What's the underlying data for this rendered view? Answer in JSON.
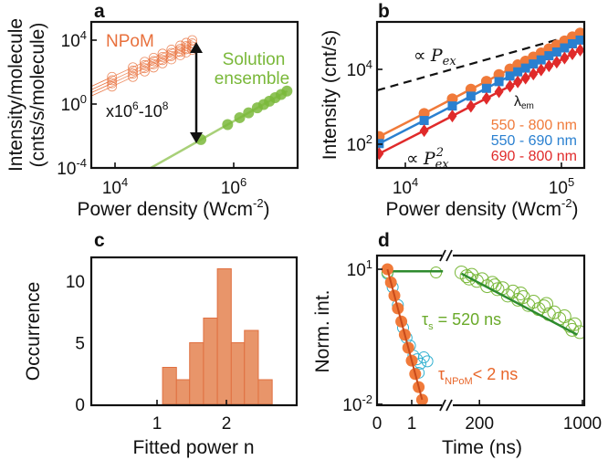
{
  "colors": {
    "npom": "#e8703c",
    "solution": "#7ab83a",
    "fit_green": "#2e8b2e",
    "orange": "#f07a3a",
    "blue": "#2a80d0",
    "red": "#e02a2a",
    "cyan": "#30b0d0",
    "hist_fill": "#e8956a",
    "hist_edge": "#e07040"
  },
  "chart_data": [
    {
      "panel": "a",
      "type": "scatter",
      "xscale": "log",
      "yscale": "log",
      "xlabel": {
        "text": "Power density (Wcm",
        "sup": "-2",
        "tail": ")"
      },
      "ylabel": [
        "Intensity/molecule",
        "(cnts/s/molecule)"
      ],
      "xlim": [
        4000,
        8000000
      ],
      "ylim": [
        0.0001,
        30000
      ],
      "xticks": [
        {
          "value": 10000,
          "base": "10",
          "exp": "4"
        },
        {
          "value": 1000000,
          "base": "10",
          "exp": "6"
        }
      ],
      "yticks": [
        {
          "value": 10000,
          "base": "10",
          "exp": "4"
        },
        {
          "value": 1,
          "base": "10",
          "exp": "0"
        },
        {
          "value": 0.0001,
          "base": "10",
          "exp": "-4"
        }
      ],
      "series": [
        {
          "name": "NPoM",
          "x": [
            8900,
            20000,
            31600,
            44700,
            63100,
            89100,
            126000,
            158000,
            200000
          ],
          "y": [
            [
              12.5,
              50,
              110,
              195,
              355,
              635,
              1145,
              1695,
              2505
            ],
            [
              20,
              80,
              176,
              312,
              568,
              1016,
              1832,
              2712,
              4008
            ],
            [
              31,
              125,
              275,
              488,
              888,
              1588,
              2863,
              4238,
              6263
            ],
            [
              50,
              200,
              440,
              780,
              1420,
              2540,
              4580,
              6780,
              10020
            ]
          ]
        },
        {
          "name": "Solution ensemble",
          "x": [
            280000,
            790000,
            1260000,
            1780000,
            2500000,
            3200000,
            4000000,
            5000000,
            6300000,
            7900000
          ],
          "y": [
            0.006,
            0.052,
            0.14,
            0.28,
            0.58,
            0.93,
            1.5,
            2.5,
            4.0,
            6.5
          ],
          "fit": [
            [
              40000,
              0.0001
            ],
            [
              8000000,
              6.6
            ]
          ]
        }
      ],
      "annotations": {
        "npom": "NPoM",
        "solution_1": "Solution",
        "solution_2": "ensemble",
        "ratio": "x10",
        "ratio_exp1": "6",
        "ratio_dash": "-10",
        "ratio_exp2": "8"
      }
    },
    {
      "panel": "b",
      "type": "line",
      "xscale": "log",
      "yscale": "log",
      "xlabel": {
        "text": "Power density (Wcm",
        "sup": "-2",
        "tail": ")"
      },
      "ylabel": [
        "Intensity (cnt/s)"
      ],
      "xlim": [
        6600,
        141000
      ],
      "ylim": [
        23,
        190000
      ],
      "xticks": [
        {
          "value": 10000,
          "base": "10",
          "exp": "4"
        },
        {
          "value": 100000,
          "base": "10",
          "exp": "5"
        }
      ],
      "yticks": [
        {
          "value": 10000,
          "base": "10",
          "exp": "4"
        },
        {
          "value": 100,
          "base": "10",
          "exp": "2"
        }
      ],
      "x": [
        6800,
        13200,
        20000,
        26300,
        33100,
        39800,
        46800,
        52500,
        58900,
        66100,
        74100,
        83200,
        93300,
        104700,
        117500,
        131800
      ],
      "series": [
        {
          "name": "550 - 800 nm",
          "marker": "circle",
          "y": [
            160,
            660,
            1620,
            2950,
            4790,
            7240,
            10200,
            13200,
            16600,
            21400,
            27500,
            35500,
            44700,
            57500,
            74100,
            93300
          ]
        },
        {
          "name": "550 - 690 nm",
          "marker": "square",
          "y": [
            104,
            430,
            1050,
            1920,
            3110,
            4710,
            6630,
            8580,
            10800,
            13900,
            17900,
            23100,
            29100,
            37400,
            48200,
            60600
          ]
        },
        {
          "name": "690 - 800 nm",
          "marker": "diamond",
          "y": [
            56,
            231,
            567,
            1030,
            1680,
            2530,
            3570,
            4620,
            5810,
            7490,
            9630,
            12400,
            15600,
            20100,
            25900,
            32700
          ]
        }
      ],
      "reference_line": {
        "x": [
          6600,
          141000
        ],
        "y": [
          2750,
          100000
        ]
      },
      "annotations": {
        "prop": "∝ ",
        "p": "P",
        "ex": "ex",
        "sq": "2",
        "lambda": "λ",
        "em": "em"
      }
    },
    {
      "panel": "c",
      "type": "bar",
      "xlabel": "Fitted power n",
      "ylabel": "Occurrence",
      "xlim": [
        0.05,
        3.0
      ],
      "ylim": [
        0,
        12
      ],
      "bin_edges": [
        1.08,
        1.28,
        1.47,
        1.67,
        1.87,
        2.07,
        2.26,
        2.46,
        2.66
      ],
      "values": [
        3,
        2,
        5,
        7,
        11,
        5,
        6,
        2
      ],
      "xticks": [
        {
          "value": 1,
          "label": "1"
        },
        {
          "value": 2,
          "label": "2"
        }
      ],
      "yticks": [
        {
          "value": 0,
          "label": "0"
        },
        {
          "value": 5,
          "label": "5"
        },
        {
          "value": 10,
          "label": "10"
        }
      ]
    },
    {
      "panel": "d",
      "type": "scatter",
      "xscale": "broken-linear",
      "yscale": "log",
      "xlabel": "Time (ns)",
      "ylabel": "Norm. int.",
      "xlim": [
        [
          0,
          2
        ],
        [
          0,
          1000
        ]
      ],
      "ylim": [
        0.01,
        20
      ],
      "xticks": [
        {
          "value": 0,
          "seg": 0,
          "label": "0"
        },
        {
          "value": 1,
          "seg": 0,
          "label": "1"
        },
        {
          "value": 200,
          "seg": 1,
          "label": "200"
        },
        {
          "value": 1000,
          "seg": 1,
          "label": "1000"
        }
      ],
      "yticks": [
        {
          "value": 10,
          "base": "10",
          "exp": "1"
        },
        {
          "value": 0.01,
          "base": "10",
          "exp": "-2"
        }
      ],
      "series": [
        {
          "name": "NPoM (filled)",
          "seg": 0,
          "x": [
            0.3,
            0.4,
            0.5,
            0.6,
            0.7,
            0.8,
            0.9,
            1.0,
            1.1,
            1.2,
            1.3
          ],
          "y": [
            10,
            5.1,
            2.6,
            1.35,
            0.69,
            0.35,
            0.18,
            0.093,
            0.047,
            0.024,
            0.0126
          ],
          "fit": [
            [
              0.3,
              10
            ],
            [
              1.3,
              0.0126
            ]
          ]
        },
        {
          "name": "NPoM (open)",
          "seg": 0,
          "x": [
            0.3,
            0.45,
            0.6,
            0.75,
            0.85,
            0.95,
            1.05,
            1.15,
            1.25,
            1.35,
            1.45,
            1.2
          ],
          "y": [
            8,
            4,
            1.6,
            0.5,
            0.3,
            0.2,
            0.12,
            0.1,
            0.08,
            0.11,
            0.09,
            0.05
          ]
        },
        {
          "name": "Solution (early)",
          "seg": 0,
          "x": [
            0.3,
            1.7
          ],
          "y": [
            8.5,
            8.5
          ],
          "fit": [
            [
              0.3,
              9
            ],
            [
              1.9,
              9
            ]
          ]
        },
        {
          "name": "Solution",
          "seg": 1,
          "x": [
            60,
            100,
            140,
            180,
            220,
            260,
            300,
            340,
            380,
            420,
            460,
            500,
            540,
            580,
            620,
            660,
            700,
            740,
            780,
            820,
            860,
            900,
            940,
            980,
            120,
            320,
            520,
            720,
            920
          ],
          "y": [
            8.5,
            7,
            7.5,
            5.5,
            6,
            4.2,
            5,
            3.6,
            3.8,
            2.6,
            3.2,
            2.1,
            2.4,
            1.6,
            1.9,
            1.3,
            1.5,
            1,
            1.1,
            0.8,
            0.9,
            0.55,
            0.6,
            0.4,
            6.2,
            4.4,
            2.9,
            1.7,
            0.45
          ],
          "fit": [
            [
              60,
              8
            ],
            [
              960,
              0.35
            ]
          ]
        }
      ],
      "annotations": {
        "tau": "τ",
        "s": "s",
        "tau_s_value": " = 520 ns",
        "npom_sub": "NPoM",
        "tau_npom_value": "< 2 ns"
      }
    }
  ],
  "panel_letters": [
    "a",
    "b",
    "c",
    "d"
  ]
}
